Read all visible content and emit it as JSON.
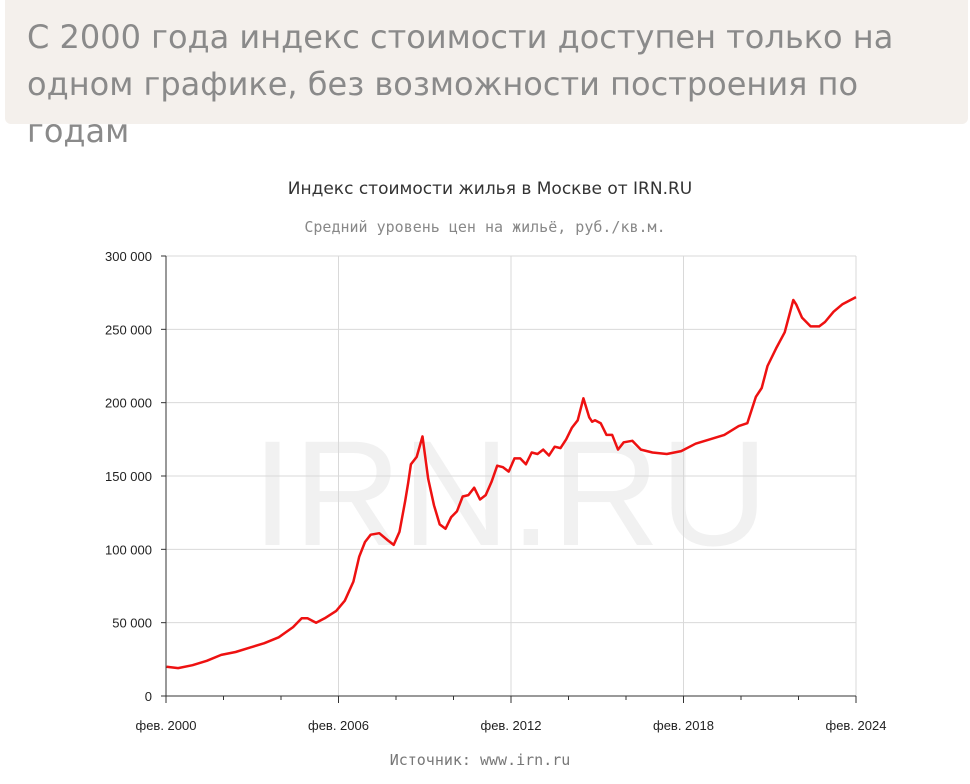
{
  "banner": {
    "text": "С 2000 года индекс стоимости доступен только на одном графике, без возможности построения по годам"
  },
  "chart_data": {
    "type": "line",
    "title": "Индекс стоимости жилья в Москве от IRN.RU",
    "subtitle": "Средний уровень цен на жильё, руб./кв.м.",
    "source": "Источник: www.irn.ru",
    "watermark": "IRN.RU",
    "ylim": [
      0,
      300000
    ],
    "yticks": [
      {
        "v": 0,
        "label": "0"
      },
      {
        "v": 50000,
        "label": "50 000"
      },
      {
        "v": 100000,
        "label": "100 000"
      },
      {
        "v": 150000,
        "label": "150 000"
      },
      {
        "v": 200000,
        "label": "200 000"
      },
      {
        "v": 250000,
        "label": "250 000"
      },
      {
        "v": 300000,
        "label": "300 000"
      }
    ],
    "xlim": [
      2000.08,
      2024.08
    ],
    "xticks": [
      {
        "v": 2000.08,
        "label": "фев. 2000"
      },
      {
        "v": 2006.08,
        "label": "фев. 2006"
      },
      {
        "v": 2012.08,
        "label": "фев. 2012"
      },
      {
        "v": 2018.08,
        "label": "фев. 2018"
      },
      {
        "v": 2024.08,
        "label": "фев. 2024"
      }
    ],
    "grid": true,
    "line_color": "#ee1111",
    "series": [
      {
        "x": [
          2000.1,
          2000.5,
          2001,
          2001.5,
          2002,
          2002.5,
          2003,
          2003.5,
          2004,
          2004.5,
          2004.8,
          2005,
          2005.3,
          2005.6,
          2006,
          2006.3,
          2006.6,
          2006.8,
          2007,
          2007.2,
          2007.5,
          2007.8,
          2008,
          2008.2,
          2008.4,
          2008.5,
          2008.6,
          2008.8,
          2009,
          2009.2,
          2009.4,
          2009.6,
          2009.8,
          2010,
          2010.2,
          2010.4,
          2010.6,
          2010.8,
          2011,
          2011.2,
          2011.4,
          2011.6,
          2011.8,
          2012,
          2012.2,
          2012.4,
          2012.6,
          2012.8,
          2013,
          2013.2,
          2013.4,
          2013.6,
          2013.8,
          2014,
          2014.2,
          2014.4,
          2014.6,
          2014.8,
          2014.9,
          2015,
          2015.2,
          2015.4,
          2015.6,
          2015.8,
          2016,
          2016.3,
          2016.6,
          2017,
          2017.5,
          2018,
          2018.5,
          2019,
          2019.5,
          2020,
          2020.3,
          2020.6,
          2020.8,
          2021,
          2021.3,
          2021.6,
          2021.9,
          2022,
          2022.2,
          2022.5,
          2022.8,
          2023,
          2023.3,
          2023.6,
          2024.08
        ],
        "values": [
          20000,
          19000,
          21000,
          24000,
          28000,
          30000,
          33000,
          36000,
          40000,
          47000,
          53000,
          53000,
          50000,
          53000,
          58000,
          65000,
          78000,
          95000,
          105000,
          110000,
          111000,
          106000,
          103000,
          112000,
          133000,
          145000,
          158000,
          163000,
          177000,
          148000,
          130000,
          117000,
          114000,
          122000,
          126000,
          136000,
          137000,
          142000,
          134000,
          137000,
          146000,
          157000,
          156000,
          153000,
          162000,
          162000,
          158000,
          166000,
          165000,
          168000,
          164000,
          170000,
          169000,
          175000,
          183000,
          188000,
          203000,
          190000,
          187000,
          188000,
          186000,
          178000,
          178000,
          168000,
          173000,
          174000,
          168000,
          166000,
          165000,
          167000,
          172000,
          175000,
          178000,
          184000,
          186000,
          204000,
          210000,
          225000,
          237000,
          248000,
          270000,
          267000,
          258000,
          252000,
          252000,
          255000,
          262000,
          267000,
          272000
        ]
      }
    ]
  }
}
